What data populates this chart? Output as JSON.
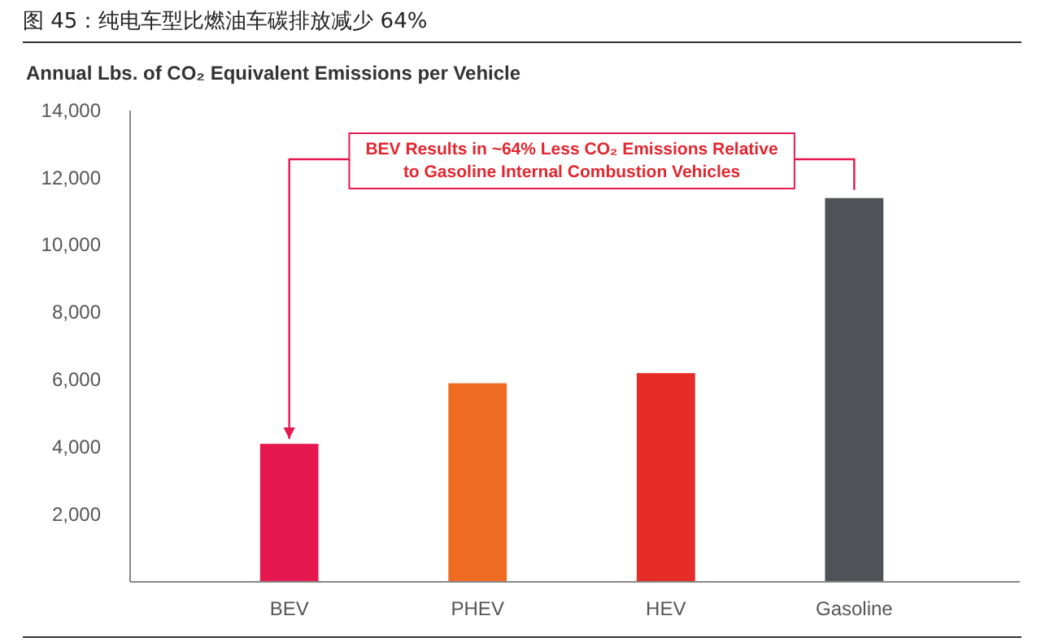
{
  "chart_data": {
    "type": "bar",
    "title": "图 45：纯电车型比燃油车碳排放减少 64%",
    "subtitle": "Annual Lbs. of CO₂ Equivalent Emissions per Vehicle",
    "categories": [
      "BEV",
      "PHEV",
      "HEV",
      "Gasoline"
    ],
    "values": [
      4100,
      5900,
      6200,
      11400
    ],
    "colors": [
      "#e5194f",
      "#f06b22",
      "#e62c27",
      "#4f5256"
    ],
    "ylim": [
      0,
      14000
    ],
    "yticks": [
      {
        "value": 2000,
        "label": "2,000"
      },
      {
        "value": 4000,
        "label": "4,000"
      },
      {
        "value": 6000,
        "label": "6,000"
      },
      {
        "value": 8000,
        "label": "8,000"
      },
      {
        "value": 10000,
        "label": "10,000"
      },
      {
        "value": 12000,
        "label": "12,000"
      },
      {
        "value": 14000,
        "label": "14,000"
      }
    ],
    "grid": false,
    "annotations": [
      "BEV Results in ~64% Less CO₂ Emissions Relative to Gasoline Internal Combustion Vehicles"
    ]
  }
}
